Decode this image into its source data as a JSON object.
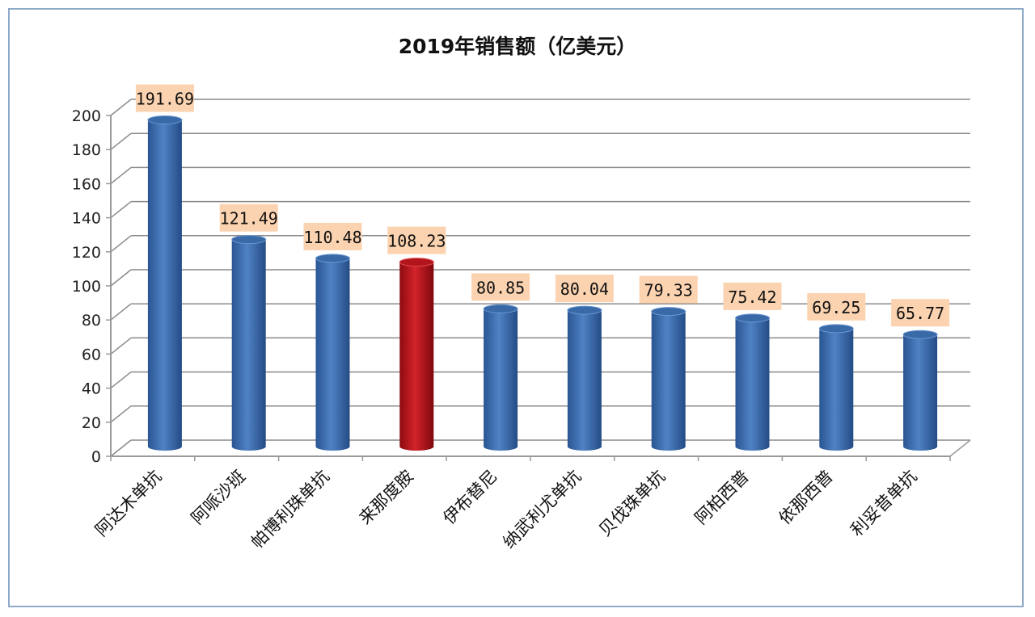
{
  "chart_data": {
    "type": "bar",
    "title": "2019年销售额（亿美元）",
    "categories": [
      "阿达木单抗",
      "阿哌沙班",
      "帕博利珠单抗",
      "来那度胺",
      "伊布替尼",
      "纳武利尤单抗",
      "贝伐珠单抗",
      "阿柏西普",
      "依那西普",
      "利妥昔单抗"
    ],
    "values": [
      191.69,
      121.49,
      110.48,
      108.23,
      80.85,
      80.04,
      79.33,
      75.42,
      69.25,
      65.77
    ],
    "data_labels": [
      "191.69",
      "121.49",
      "110.48",
      "108.23",
      "80.85",
      "80.04",
      "79.33",
      "75.42",
      "69.25",
      "65.77"
    ],
    "ylim": [
      0,
      200
    ],
    "yticks": [
      "0",
      "20",
      "40",
      "60",
      "80",
      "100",
      "120",
      "140",
      "160",
      "180",
      "200"
    ],
    "grid": true,
    "style": "3d-cylinder",
    "colors": {
      "default": "#3f6fb0",
      "highlight": "#c0141c",
      "label_bg": "#fbd3b0",
      "grid": "#8a8a8a"
    },
    "highlight_index": 3
  }
}
